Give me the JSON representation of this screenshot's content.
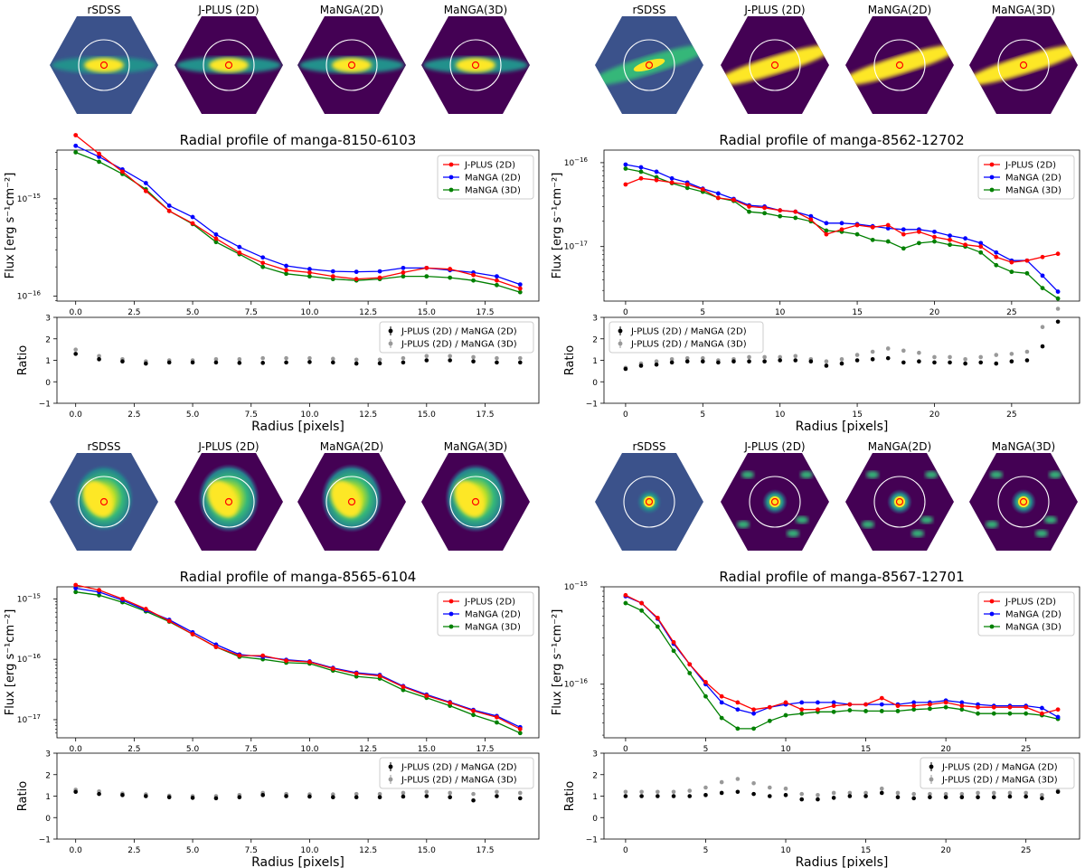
{
  "figure": {
    "legend_flux": [
      "J-PLUS (2D)",
      "MaNGA (2D)",
      "MaNGA (3D)"
    ],
    "legend_ratio": [
      "J-PLUS (2D) / MaNGA (2D)",
      "J-PLUS (2D) / MaNGA (3D)"
    ],
    "image_titles": [
      "rSDSS",
      "J-PLUS (2D)",
      "MaNGA(2D)",
      "MaNGA(3D)"
    ],
    "ylabel_flux": "Flux [erg s⁻¹cm⁻²]",
    "ylabel_ratio": "Ratio",
    "xlabel": "Radius [pixels]",
    "colors": {
      "jplus": "#ff0000",
      "manga2d": "#0000ff",
      "manga3d": "#008000",
      "ratio2d": "#000000",
      "ratio3d": "#999999",
      "map_bg": "#440154",
      "map_hi": "#fde725"
    }
  },
  "chart_data": [
    {
      "type": "line",
      "title": "Radial profile of manga-8150-6103",
      "yscale": "log",
      "x": [
        0,
        1,
        2,
        3,
        4,
        5,
        6,
        7,
        8,
        9,
        10,
        11,
        12,
        13,
        14,
        15,
        16,
        17,
        18,
        19
      ],
      "xlim": [
        -0.8,
        19.8
      ],
      "xticks": [
        "0.0",
        "2.5",
        "5.0",
        "7.5",
        "10.0",
        "12.5",
        "15.0",
        "17.5"
      ],
      "xtick_values": [
        0,
        2.5,
        5,
        7.5,
        10,
        12.5,
        15,
        17.5
      ],
      "ylim_exp": [
        -16.05,
        -14.5
      ],
      "yticks": [
        -16,
        -15
      ],
      "series": [
        {
          "name": "J-PLUS (2D)",
          "values": [
            4.5e-15,
            2.9e-15,
            1.9e-15,
            1.2e-15,
            7.5e-16,
            5.6e-16,
            3.9e-16,
            2.8e-16,
            2.2e-16,
            1.85e-16,
            1.75e-16,
            1.6e-16,
            1.5e-16,
            1.55e-16,
            1.75e-16,
            1.95e-16,
            1.9e-16,
            1.65e-16,
            1.45e-16,
            1.2e-16
          ]
        },
        {
          "name": "MaNGA (2D)",
          "values": [
            3.5e-15,
            2.7e-15,
            2e-15,
            1.45e-15,
            8.5e-16,
            6.5e-16,
            4.3e-16,
            3.2e-16,
            2.5e-16,
            2.05e-16,
            1.9e-16,
            1.8e-16,
            1.78e-16,
            1.8e-16,
            1.95e-16,
            1.95e-16,
            1.85e-16,
            1.75e-16,
            1.6e-16,
            1.32e-16
          ]
        },
        {
          "name": "MaNGA (3D)",
          "values": [
            3e-15,
            2.4e-15,
            1.8e-15,
            1.25e-15,
            7.5e-16,
            5.5e-16,
            3.6e-16,
            2.7e-16,
            2e-16,
            1.7e-16,
            1.6e-16,
            1.5e-16,
            1.45e-16,
            1.5e-16,
            1.6e-16,
            1.6e-16,
            1.55e-16,
            1.45e-16,
            1.3e-16,
            1.1e-16
          ]
        }
      ],
      "ratio": {
        "ylim": [
          -1,
          3
        ],
        "yticks": [
          -1,
          0,
          1,
          2,
          3
        ],
        "legend_position": "top-right",
        "series": [
          {
            "name": "J-PLUS (2D) / MaNGA (2D)",
            "values": [
              1.3,
              1.05,
              0.95,
              0.85,
              0.9,
              0.9,
              0.9,
              0.88,
              0.88,
              0.9,
              0.92,
              0.9,
              0.85,
              0.86,
              0.9,
              1.0,
              1.0,
              0.95,
              0.9,
              0.9
            ]
          },
          {
            "name": "J-PLUS (2D) / MaNGA (3D)",
            "values": [
              1.5,
              1.2,
              1.05,
              0.95,
              1.0,
              1.0,
              1.05,
              1.05,
              1.1,
              1.1,
              1.1,
              1.07,
              1.03,
              1.03,
              1.1,
              1.2,
              1.2,
              1.15,
              1.1,
              1.1
            ]
          }
        ]
      },
      "legend_position": "top-right"
    },
    {
      "type": "line",
      "title": "Radial profile of manga-8562-12702",
      "yscale": "log",
      "x": [
        0,
        1,
        2,
        3,
        4,
        5,
        6,
        7,
        8,
        9,
        10,
        11,
        12,
        13,
        14,
        15,
        16,
        17,
        18,
        19,
        20,
        21,
        22,
        23,
        24,
        25,
        26,
        27,
        28
      ],
      "xlim": [
        -1.4,
        29.4
      ],
      "xticks": [
        "0",
        "5",
        "10",
        "15",
        "20",
        "25"
      ],
      "xtick_values": [
        0,
        5,
        10,
        15,
        20,
        25
      ],
      "ylim_exp": [
        -17.65,
        -15.85
      ],
      "yticks": [
        -17,
        -16
      ],
      "series": [
        {
          "name": "J-PLUS (2D)",
          "values": [
            5.5e-17,
            6.5e-17,
            6.2e-17,
            5.8e-17,
            5.5e-17,
            4.8e-17,
            3.8e-17,
            3.6e-17,
            3e-17,
            2.9e-17,
            2.7e-17,
            2.6e-17,
            2.1e-17,
            1.4e-17,
            1.6e-17,
            1.8e-17,
            1.7e-17,
            1.8e-17,
            1.4e-17,
            1.5e-17,
            1.3e-17,
            1.2e-17,
            1.05e-17,
            1e-17,
            7.5e-18,
            6.5e-18,
            6.8e-18,
            7.5e-18,
            8.2e-18
          ]
        },
        {
          "name": "MaNGA (2D)",
          "values": [
            9.5e-17,
            8.8e-17,
            7.8e-17,
            6.5e-17,
            5.8e-17,
            4.9e-17,
            4.3e-17,
            3.7e-17,
            3.1e-17,
            3e-17,
            2.7e-17,
            2.6e-17,
            2.3e-17,
            1.9e-17,
            1.9e-17,
            1.85e-17,
            1.75e-17,
            1.65e-17,
            1.6e-17,
            1.6e-17,
            1.5e-17,
            1.35e-17,
            1.25e-17,
            1.1e-17,
            8.5e-18,
            6.8e-18,
            6.8e-18,
            4.5e-18,
            2.9e-18
          ]
        },
        {
          "name": "MaNGA (3D)",
          "values": [
            8.5e-17,
            7.8e-17,
            6.7e-17,
            5.7e-17,
            5e-17,
            4.5e-17,
            3.8e-17,
            3.5e-17,
            2.6e-17,
            2.5e-17,
            2.3e-17,
            2.2e-17,
            2e-17,
            1.55e-17,
            1.5e-17,
            1.4e-17,
            1.2e-17,
            1.15e-17,
            9.5e-18,
            1.1e-17,
            1.15e-17,
            1.05e-17,
            1e-17,
            8.5e-18,
            6e-18,
            5e-18,
            4.8e-18,
            3.2e-18,
            2.4e-18
          ]
        }
      ],
      "ratio": {
        "ylim": [
          -1,
          3
        ],
        "yticks": [
          -1,
          0,
          1,
          2,
          3
        ],
        "legend_position": "top-left",
        "series": [
          {
            "name": "J-PLUS (2D) / MaNGA (2D)",
            "values": [
              0.6,
              0.75,
              0.8,
              0.9,
              0.95,
              0.95,
              0.9,
              0.95,
              0.95,
              0.95,
              1.0,
              1.0,
              0.95,
              0.75,
              0.85,
              1.0,
              1.05,
              1.1,
              0.9,
              0.95,
              0.9,
              0.9,
              0.85,
              0.9,
              0.85,
              0.95,
              1.0,
              1.65,
              2.8
            ]
          },
          {
            "name": "J-PLUS (2D) / MaNGA (3D)",
            "values": [
              0.65,
              0.85,
              0.95,
              1.05,
              1.1,
              1.1,
              1.0,
              1.05,
              1.15,
              1.15,
              1.15,
              1.2,
              1.05,
              0.95,
              1.05,
              1.25,
              1.4,
              1.55,
              1.45,
              1.35,
              1.15,
              1.15,
              1.05,
              1.15,
              1.25,
              1.3,
              1.4,
              2.55,
              3.4
            ]
          }
        ]
      },
      "legend_position": "top-right"
    },
    {
      "type": "line",
      "title": "Radial profile of manga-8565-6104",
      "yscale": "log",
      "x": [
        0,
        1,
        2,
        3,
        4,
        5,
        6,
        7,
        8,
        9,
        10,
        11,
        12,
        13,
        14,
        15,
        16,
        17,
        18,
        19
      ],
      "xlim": [
        -0.8,
        19.8
      ],
      "xticks": [
        "0.0",
        "2.5",
        "5.0",
        "7.5",
        "10.0",
        "12.5",
        "15.0",
        "17.5"
      ],
      "xtick_values": [
        0,
        2.5,
        5,
        7.5,
        10,
        12.5,
        15,
        17.5
      ],
      "ylim_exp": [
        -17.3,
        -14.8
      ],
      "yticks": [
        -17,
        -16,
        -15
      ],
      "series": [
        {
          "name": "J-PLUS (2D)",
          "values": [
            1.7e-15,
            1.4e-15,
            1e-15,
            6.8e-16,
            4.3e-16,
            2.6e-16,
            1.6e-16,
            1.15e-16,
            1.15e-16,
            9.5e-17,
            9e-17,
            7e-17,
            5.8e-17,
            5.3e-17,
            3.5e-17,
            2.5e-17,
            1.9e-17,
            1.4e-17,
            1.1e-17,
            7e-18
          ]
        },
        {
          "name": "MaNGA (2D)",
          "values": [
            1.5e-15,
            1.3e-15,
            9.5e-16,
            6.5e-16,
            4.5e-16,
            2.8e-16,
            1.75e-16,
            1.2e-16,
            1.1e-16,
            9.8e-17,
            9.2e-17,
            7.2e-17,
            6e-17,
            5.5e-17,
            3.6e-17,
            2.6e-17,
            1.95e-17,
            1.45e-17,
            1.15e-17,
            7.5e-18
          ]
        },
        {
          "name": "MaNGA (3D)",
          "values": [
            1.3e-15,
            1.15e-15,
            8.8e-16,
            6.2e-16,
            4.2e-16,
            2.6e-16,
            1.6e-16,
            1.1e-16,
            1e-16,
            8.8e-17,
            8.5e-17,
            6.5e-17,
            5.2e-17,
            4.8e-17,
            3.1e-17,
            2.3e-17,
            1.7e-17,
            1.2e-17,
            9e-18,
            6e-18
          ]
        }
      ],
      "ratio": {
        "ylim": [
          -1,
          3
        ],
        "yticks": [
          -1,
          0,
          1,
          2,
          3
        ],
        "legend_position": "top-right",
        "series": [
          {
            "name": "J-PLUS (2D) / MaNGA (2D)",
            "values": [
              1.2,
              1.1,
              1.05,
              1.0,
              0.95,
              0.92,
              0.9,
              0.95,
              1.05,
              1.0,
              0.98,
              0.95,
              0.95,
              0.95,
              0.98,
              1.0,
              0.95,
              0.8,
              1.0,
              0.9
            ]
          },
          {
            "name": "J-PLUS (2D) / MaNGA (3D)",
            "values": [
              1.3,
              1.22,
              1.12,
              1.08,
              1.02,
              1.0,
              1.0,
              1.05,
              1.15,
              1.1,
              1.08,
              1.08,
              1.1,
              1.1,
              1.15,
              1.2,
              1.15,
              1.1,
              1.2,
              1.15
            ]
          }
        ]
      },
      "legend_position": "top-right"
    },
    {
      "type": "line",
      "title": "Radial profile of manga-8567-12701",
      "yscale": "log",
      "x": [
        0,
        1,
        2,
        3,
        4,
        5,
        6,
        7,
        8,
        9,
        10,
        11,
        12,
        13,
        14,
        15,
        16,
        17,
        18,
        19,
        20,
        21,
        22,
        23,
        24,
        25,
        26,
        27
      ],
      "xlim": [
        -1.35,
        28.35
      ],
      "xticks": [
        "0",
        "5",
        "10",
        "15",
        "20",
        "25"
      ],
      "xtick_values": [
        0,
        5,
        10,
        15,
        20,
        25
      ],
      "ylim_exp": [
        -16.55,
        -15.0
      ],
      "yticks": [
        -16,
        -15
      ],
      "series": [
        {
          "name": "J-PLUS (2D)",
          "values": [
            8.2e-16,
            6.8e-16,
            4.8e-16,
            2.7e-16,
            1.6e-16,
            1.05e-16,
            7.5e-17,
            6.5e-17,
            5.5e-17,
            5.8e-17,
            6.5e-17,
            5.5e-17,
            5.5e-17,
            6e-17,
            6.2e-17,
            6.2e-17,
            7.2e-17,
            6e-17,
            6e-17,
            6.2e-17,
            6.5e-17,
            6e-17,
            5.8e-17,
            5.8e-17,
            5.8e-17,
            5.8e-17,
            5e-17,
            5.5e-17
          ]
        },
        {
          "name": "MaNGA (2D)",
          "values": [
            8e-16,
            6.8e-16,
            4.7e-16,
            2.6e-16,
            1.6e-16,
            1e-16,
            6.5e-17,
            5.5e-17,
            5e-17,
            5.8e-17,
            6.2e-17,
            6.5e-17,
            6.5e-17,
            6.5e-17,
            6.2e-17,
            6.2e-17,
            6.2e-17,
            6.2e-17,
            6.5e-17,
            6.5e-17,
            6.8e-17,
            6.5e-17,
            6.2e-17,
            6e-17,
            6e-17,
            6e-17,
            5.7e-17,
            4.6e-17
          ]
        },
        {
          "name": "MaNGA (3D)",
          "values": [
            6.8e-16,
            5.7e-16,
            3.9e-16,
            2.2e-16,
            1.3e-16,
            7.5e-17,
            4.5e-17,
            3.5e-17,
            3.5e-17,
            4.2e-17,
            4.8e-17,
            5e-17,
            5.2e-17,
            5.2e-17,
            5.4e-17,
            5.3e-17,
            5.3e-17,
            5.3e-17,
            5.5e-17,
            5.6e-17,
            5.8e-17,
            5.5e-17,
            5e-17,
            5e-17,
            5e-17,
            5e-17,
            4.8e-17,
            4.4e-17
          ]
        }
      ],
      "ratio": {
        "ylim": [
          -1,
          3
        ],
        "yticks": [
          -1,
          0,
          1,
          2,
          3
        ],
        "legend_position": "top-right",
        "series": [
          {
            "name": "J-PLUS (2D) / MaNGA (2D)",
            "values": [
              1.0,
              1.0,
              1.0,
              1.0,
              1.0,
              1.05,
              1.15,
              1.2,
              1.1,
              1.0,
              1.05,
              0.85,
              0.85,
              0.92,
              1.0,
              1.0,
              1.15,
              0.95,
              0.9,
              0.95,
              0.95,
              0.95,
              0.95,
              0.95,
              0.98,
              0.98,
              0.9,
              1.2
            ]
          },
          {
            "name": "J-PLUS (2D) / MaNGA (3D)",
            "values": [
              1.2,
              1.2,
              1.2,
              1.2,
              1.25,
              1.4,
              1.65,
              1.8,
              1.6,
              1.4,
              1.35,
              1.1,
              1.05,
              1.15,
              1.15,
              1.15,
              1.35,
              1.15,
              1.1,
              1.1,
              1.1,
              1.1,
              1.15,
              1.15,
              1.15,
              1.15,
              1.05,
              1.25
            ]
          }
        ]
      },
      "legend_position": "top-right"
    }
  ]
}
